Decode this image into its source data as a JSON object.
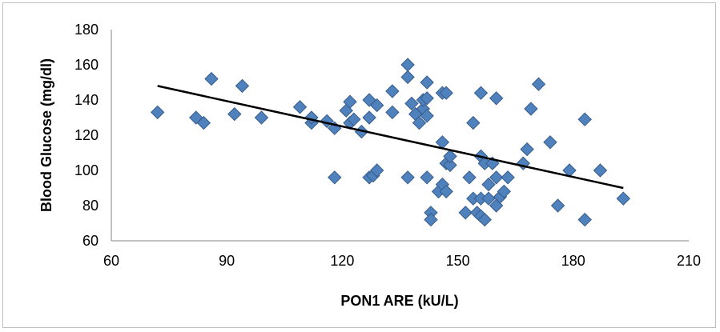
{
  "chart_data": {
    "type": "scatter",
    "title": "",
    "xlabel": "PON1 ARE (kU/L)",
    "ylabel": "Blood Glucose (mg/dl)",
    "xlim": [
      60,
      210
    ],
    "ylim": [
      60,
      180
    ],
    "xticks": [
      60,
      90,
      120,
      150,
      180,
      210
    ],
    "yticks": [
      60,
      80,
      100,
      120,
      140,
      160,
      180
    ],
    "grid": false,
    "legend": "none",
    "marker_color": "#4f81bd",
    "marker_edge_color": "#385d8a",
    "trendline_color": "#000000",
    "trendline": {
      "x": [
        72,
        193
      ],
      "y": [
        148,
        90
      ]
    },
    "points": [
      {
        "x": 72,
        "y": 133
      },
      {
        "x": 82,
        "y": 130
      },
      {
        "x": 84,
        "y": 127
      },
      {
        "x": 86,
        "y": 152
      },
      {
        "x": 92,
        "y": 132
      },
      {
        "x": 94,
        "y": 148
      },
      {
        "x": 99,
        "y": 130
      },
      {
        "x": 109,
        "y": 136
      },
      {
        "x": 112,
        "y": 127
      },
      {
        "x": 112,
        "y": 130
      },
      {
        "x": 116,
        "y": 128
      },
      {
        "x": 118,
        "y": 124
      },
      {
        "x": 118,
        "y": 96
      },
      {
        "x": 121,
        "y": 134
      },
      {
        "x": 122,
        "y": 127
      },
      {
        "x": 122,
        "y": 139
      },
      {
        "x": 123,
        "y": 129
      },
      {
        "x": 125,
        "y": 122
      },
      {
        "x": 127,
        "y": 140
      },
      {
        "x": 127,
        "y": 130
      },
      {
        "x": 127,
        "y": 96
      },
      {
        "x": 128,
        "y": 97
      },
      {
        "x": 129,
        "y": 137
      },
      {
        "x": 129,
        "y": 100
      },
      {
        "x": 133,
        "y": 133
      },
      {
        "x": 133,
        "y": 145
      },
      {
        "x": 137,
        "y": 160
      },
      {
        "x": 137,
        "y": 153
      },
      {
        "x": 137,
        "y": 96
      },
      {
        "x": 138,
        "y": 138
      },
      {
        "x": 139,
        "y": 132
      },
      {
        "x": 140,
        "y": 127
      },
      {
        "x": 141,
        "y": 135
      },
      {
        "x": 141,
        "y": 140
      },
      {
        "x": 142,
        "y": 131
      },
      {
        "x": 142,
        "y": 141
      },
      {
        "x": 142,
        "y": 150
      },
      {
        "x": 142,
        "y": 96
      },
      {
        "x": 143,
        "y": 76
      },
      {
        "x": 143,
        "y": 72
      },
      {
        "x": 145,
        "y": 88
      },
      {
        "x": 146,
        "y": 92
      },
      {
        "x": 146,
        "y": 116
      },
      {
        "x": 146,
        "y": 144
      },
      {
        "x": 147,
        "y": 88
      },
      {
        "x": 147,
        "y": 104
      },
      {
        "x": 147,
        "y": 144
      },
      {
        "x": 148,
        "y": 103
      },
      {
        "x": 148,
        "y": 108
      },
      {
        "x": 152,
        "y": 76
      },
      {
        "x": 153,
        "y": 96
      },
      {
        "x": 154,
        "y": 84
      },
      {
        "x": 154,
        "y": 127
      },
      {
        "x": 155,
        "y": 76
      },
      {
        "x": 156,
        "y": 108
      },
      {
        "x": 156,
        "y": 74
      },
      {
        "x": 156,
        "y": 84
      },
      {
        "x": 156,
        "y": 144
      },
      {
        "x": 157,
        "y": 72
      },
      {
        "x": 157,
        "y": 104
      },
      {
        "x": 158,
        "y": 92
      },
      {
        "x": 158,
        "y": 84
      },
      {
        "x": 159,
        "y": 104
      },
      {
        "x": 160,
        "y": 96
      },
      {
        "x": 160,
        "y": 80
      },
      {
        "x": 160,
        "y": 141
      },
      {
        "x": 161,
        "y": 85
      },
      {
        "x": 162,
        "y": 88
      },
      {
        "x": 163,
        "y": 96
      },
      {
        "x": 167,
        "y": 104
      },
      {
        "x": 168,
        "y": 112
      },
      {
        "x": 169,
        "y": 135
      },
      {
        "x": 171,
        "y": 149
      },
      {
        "x": 174,
        "y": 116
      },
      {
        "x": 176,
        "y": 80
      },
      {
        "x": 179,
        "y": 100
      },
      {
        "x": 183,
        "y": 129
      },
      {
        "x": 183,
        "y": 72
      },
      {
        "x": 187,
        "y": 100
      },
      {
        "x": 193,
        "y": 84
      }
    ]
  }
}
